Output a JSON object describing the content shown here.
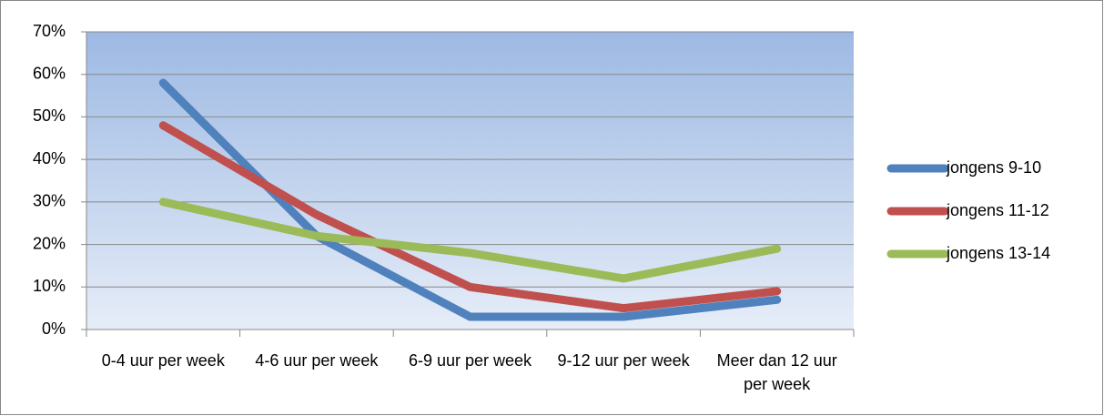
{
  "chart_data": {
    "type": "line",
    "categories": [
      "0-4 uur per week",
      "4-6 uur per week",
      "6-9 uur per week",
      "9-12 uur per week",
      "Meer dan 12 uur per week"
    ],
    "series": [
      {
        "name": "jongens 9-10",
        "color": "#4f81bd",
        "values": [
          58,
          22,
          3,
          3,
          7
        ]
      },
      {
        "name": "jongens 11-12",
        "color": "#c0504d",
        "values": [
          48,
          27,
          10,
          5,
          9
        ]
      },
      {
        "name": "jongens 13-14",
        "color": "#9bbb59",
        "values": [
          30,
          22,
          18,
          12,
          19
        ]
      }
    ],
    "ylim": [
      0,
      70
    ],
    "yticks": [
      {
        "value": 0,
        "label": "0%"
      },
      {
        "value": 10,
        "label": "10%"
      },
      {
        "value": 20,
        "label": "20%"
      },
      {
        "value": 30,
        "label": "30%"
      },
      {
        "value": 40,
        "label": "40%"
      },
      {
        "value": 50,
        "label": "50%"
      },
      {
        "value": 60,
        "label": "60%"
      },
      {
        "value": 70,
        "label": "70%"
      }
    ],
    "grid": true,
    "legend": "right"
  }
}
